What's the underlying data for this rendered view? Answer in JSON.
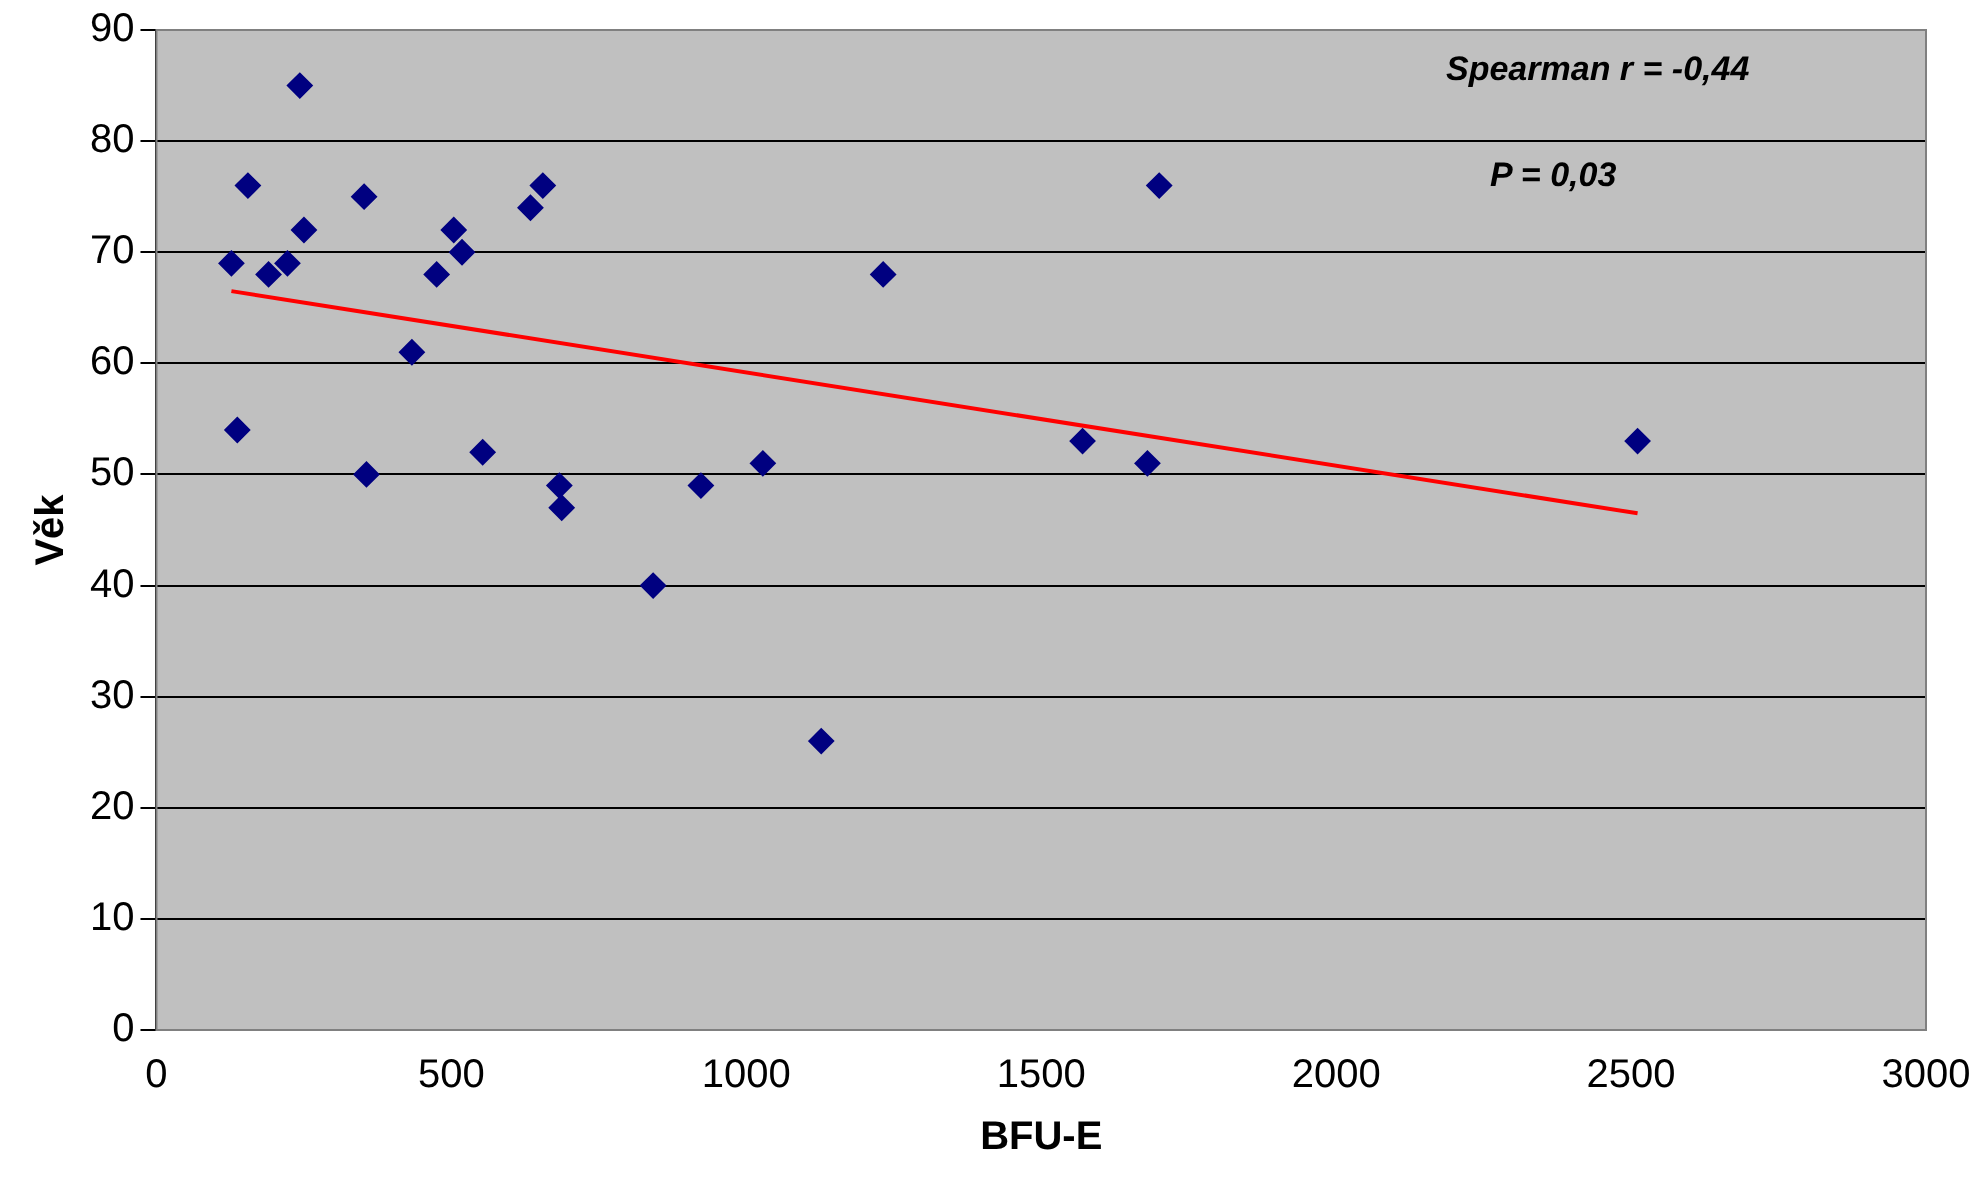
{
  "chart_data": {
    "type": "scatter",
    "xlabel": "BFU-E",
    "ylabel": "Věk",
    "xlim": [
      0,
      3000
    ],
    "xticks": [
      0,
      500,
      1000,
      1500,
      2000,
      2500,
      3000
    ],
    "ylim": [
      0,
      90
    ],
    "yticks": [
      0,
      10,
      20,
      30,
      40,
      50,
      60,
      70,
      80,
      90
    ],
    "grid": "y",
    "legend": false,
    "marker": "diamond",
    "annotations": [
      "Spearman r = -0,44",
      "P = 0,03"
    ],
    "series": [
      {
        "color": "#000080",
        "x": [
          127,
          137,
          155,
          190,
          222,
          243,
          250,
          352,
          356,
          433,
          475,
          504,
          518,
          553,
          634,
          655,
          683,
          687,
          842,
          923,
          1028,
          1127,
          1232,
          1570,
          1680,
          1700,
          2511
        ],
        "values": [
          69,
          54,
          76,
          68,
          69,
          85,
          72,
          75,
          50,
          61,
          68,
          72,
          70,
          52,
          74,
          76,
          49,
          47,
          40,
          49,
          51,
          26,
          68,
          53,
          51,
          76,
          53
        ]
      },
      {
        "type": "line",
        "color": "#ff0000",
        "marker": "none",
        "x": [
          127,
          2511
        ],
        "values": [
          66.5,
          46.5
        ]
      }
    ]
  }
}
